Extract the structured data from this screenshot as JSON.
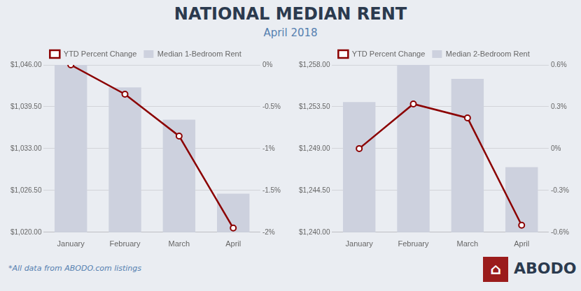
{
  "title": "NATIONAL MEDIAN RENT",
  "subtitle": "April 2018",
  "annotations": [
    "*All data from ABODO.com listings",
    "⌂",
    "ABODO"
  ],
  "chart_data": [
    {
      "type": "bar",
      "categories": [
        "January",
        "February",
        "March",
        "April"
      ],
      "series": [
        {
          "name": "Median 1-Bedroom Rent",
          "type": "bar",
          "color": "#cdd1de",
          "values": [
            1046.0,
            1042.5,
            1037.5,
            1026.0
          ]
        },
        {
          "name": "YTD Percent Change",
          "type": "line",
          "color": "#8b0000",
          "marker": "circle",
          "axis": "y2",
          "values": [
            0.0,
            -0.35,
            -0.85,
            -1.95
          ]
        }
      ],
      "ylim": [
        1020.0,
        1046.0
      ],
      "yticks": [
        {
          "value": 1020.0,
          "label": "$1,020.00"
        },
        {
          "value": 1026.5,
          "label": "$1,026.50"
        },
        {
          "value": 1033.0,
          "label": "$1,033.00"
        },
        {
          "value": 1039.5,
          "label": "$1,039.50"
        },
        {
          "value": 1046.0,
          "label": "$1,046.00"
        }
      ],
      "y2lim": [
        -2.0,
        0.0
      ],
      "y2ticks": [
        {
          "value": 0.0,
          "label": "0%"
        },
        {
          "value": -0.5,
          "label": "-0.5%"
        },
        {
          "value": -1.0,
          "label": "-1%"
        },
        {
          "value": -1.5,
          "label": "-1.5%"
        },
        {
          "value": -2.0,
          "label": "-2%"
        }
      ],
      "grid": true,
      "legend": "top"
    },
    {
      "type": "bar",
      "categories": [
        "January",
        "February",
        "March",
        "April"
      ],
      "series": [
        {
          "name": "Median 2-Bedroom Rent",
          "type": "bar",
          "color": "#cdd1de",
          "values": [
            1254.0,
            1258.0,
            1256.5,
            1247.0
          ]
        },
        {
          "name": "YTD Percent Change",
          "type": "line",
          "color": "#8b0000",
          "marker": "circle",
          "axis": "y2",
          "values": [
            0.0,
            0.32,
            0.22,
            -0.55
          ]
        }
      ],
      "ylim": [
        1240.0,
        1258.0
      ],
      "yticks": [
        {
          "value": 1240.0,
          "label": "$1,240.00"
        },
        {
          "value": 1244.5,
          "label": "$1,244.50"
        },
        {
          "value": 1249.0,
          "label": "$1,249.00"
        },
        {
          "value": 1253.5,
          "label": "$1,253.50"
        },
        {
          "value": 1258.0,
          "label": "$1,258.00"
        }
      ],
      "y2lim": [
        -0.6,
        0.6
      ],
      "y2ticks": [
        {
          "value": 0.6,
          "label": "0.6%"
        },
        {
          "value": 0.3,
          "label": "0.3%"
        },
        {
          "value": 0.0,
          "label": "0%"
        },
        {
          "value": -0.3,
          "label": "-0.3%"
        },
        {
          "value": -0.6,
          "label": "-0.6%"
        }
      ],
      "grid": true,
      "legend": "top"
    }
  ]
}
